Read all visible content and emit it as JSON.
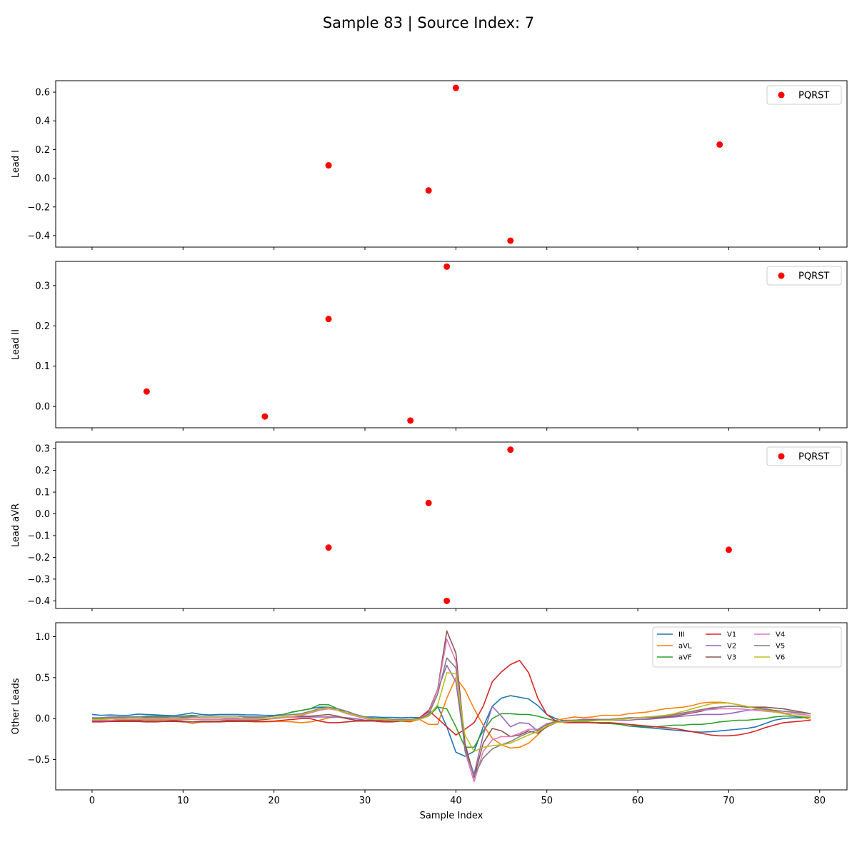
{
  "figure": {
    "title": "Sample 83 | Source Index: 7"
  },
  "chart_data": [
    {
      "type": "scatter",
      "ylabel": "Lead I",
      "xlim": [
        -4,
        83
      ],
      "ylim": [
        -0.48,
        0.68
      ],
      "yticks": [
        -0.4,
        -0.2,
        0.0,
        0.2,
        0.4,
        0.6
      ],
      "ytick_labels": [
        "−0.4",
        "−0.2",
        "0.0",
        "0.2",
        "0.4",
        "0.6"
      ],
      "xticks": [
        0,
        10,
        20,
        30,
        40,
        50,
        60,
        70,
        80
      ],
      "show_xtick_labels": false,
      "legend": {
        "placement": "upper-right",
        "entries": [
          {
            "label": "PQRST",
            "color": "#ff0000",
            "marker": "circle"
          }
        ]
      },
      "series": [
        {
          "name": "PQRST",
          "color": "#ff0000",
          "points": [
            [
              26,
              0.09
            ],
            [
              37,
              -0.085
            ],
            [
              40,
              0.63
            ],
            [
              46,
              -0.435
            ],
            [
              69,
              0.235
            ]
          ]
        }
      ]
    },
    {
      "type": "scatter",
      "ylabel": "Lead II",
      "xlim": [
        -4,
        83
      ],
      "ylim": [
        -0.053,
        0.36
      ],
      "yticks": [
        0.0,
        0.1,
        0.2,
        0.3
      ],
      "ytick_labels": [
        "0.0",
        "0.1",
        "0.2",
        "0.3"
      ],
      "xticks": [
        0,
        10,
        20,
        30,
        40,
        50,
        60,
        70,
        80
      ],
      "show_xtick_labels": false,
      "legend": {
        "placement": "upper-right",
        "entries": [
          {
            "label": "PQRST",
            "color": "#ff0000",
            "marker": "circle"
          }
        ]
      },
      "series": [
        {
          "name": "PQRST",
          "color": "#ff0000",
          "points": [
            [
              6,
              0.037
            ],
            [
              19,
              -0.025
            ],
            [
              26,
              0.217
            ],
            [
              35,
              -0.035
            ],
            [
              39,
              0.347
            ]
          ]
        }
      ]
    },
    {
      "type": "scatter",
      "ylabel": "Lead aVR",
      "xlim": [
        -4,
        83
      ],
      "ylim": [
        -0.435,
        0.33
      ],
      "yticks": [
        -0.4,
        -0.3,
        -0.2,
        -0.1,
        0.0,
        0.1,
        0.2,
        0.3
      ],
      "ytick_labels": [
        "−0.4",
        "−0.3",
        "−0.2",
        "−0.1",
        "0.0",
        "0.1",
        "0.2",
        "0.3"
      ],
      "xticks": [
        0,
        10,
        20,
        30,
        40,
        50,
        60,
        70,
        80
      ],
      "show_xtick_labels": false,
      "legend": {
        "placement": "upper-right",
        "entries": [
          {
            "label": "PQRST",
            "color": "#ff0000",
            "marker": "circle"
          }
        ]
      },
      "series": [
        {
          "name": "PQRST",
          "color": "#ff0000",
          "points": [
            [
              26,
              -0.155
            ],
            [
              37,
              0.05
            ],
            [
              39,
              -0.4
            ],
            [
              46,
              0.295
            ],
            [
              70,
              -0.165
            ]
          ]
        }
      ]
    },
    {
      "type": "line",
      "ylabel": "Other Leads",
      "xlabel": "Sample Index",
      "xlim": [
        -4,
        83
      ],
      "ylim": [
        -0.87,
        1.17
      ],
      "yticks": [
        -0.5,
        0.0,
        0.5,
        1.0
      ],
      "ytick_labels": [
        "−0.5",
        "0.0",
        "0.5",
        "1.0"
      ],
      "xticks": [
        0,
        10,
        20,
        30,
        40,
        50,
        60,
        70,
        80
      ],
      "xtick_labels": [
        "0",
        "10",
        "20",
        "30",
        "40",
        "50",
        "60",
        "70",
        "80"
      ],
      "show_xtick_labels": true,
      "legend": {
        "placement": "upper-right",
        "columns": 4
      },
      "x": [
        0,
        1,
        2,
        3,
        4,
        5,
        6,
        7,
        8,
        9,
        10,
        11,
        12,
        13,
        14,
        15,
        16,
        17,
        18,
        19,
        20,
        21,
        22,
        23,
        24,
        25,
        26,
        27,
        28,
        29,
        30,
        31,
        32,
        33,
        34,
        35,
        36,
        37,
        38,
        39,
        40,
        41,
        42,
        43,
        44,
        45,
        46,
        47,
        48,
        49,
        50,
        51,
        52,
        53,
        54,
        55,
        56,
        57,
        58,
        59,
        60,
        61,
        62,
        63,
        64,
        65,
        66,
        67,
        68,
        69,
        70,
        71,
        72,
        73,
        74,
        75,
        76,
        77,
        78,
        79
      ],
      "series": [
        {
          "name": "III",
          "color": "#1f77b4",
          "values": [
            0.05,
            0.04,
            0.045,
            0.04,
            0.04,
            0.055,
            0.05,
            0.045,
            0.04,
            0.035,
            0.05,
            0.07,
            0.05,
            0.045,
            0.05,
            0.05,
            0.05,
            0.045,
            0.045,
            0.04,
            0.04,
            0.05,
            0.08,
            0.1,
            0.12,
            0.14,
            0.14,
            0.1,
            0.07,
            0.05,
            0.02,
            0.02,
            0.015,
            0.015,
            0.01,
            0.015,
            0.01,
            0.05,
            0.15,
            -0.1,
            -0.41,
            -0.46,
            -0.4,
            -0.1,
            0.15,
            0.25,
            0.28,
            0.26,
            0.24,
            0.16,
            0.05,
            0.0,
            -0.03,
            -0.04,
            -0.045,
            -0.05,
            -0.055,
            -0.06,
            -0.07,
            -0.09,
            -0.1,
            -0.11,
            -0.12,
            -0.13,
            -0.14,
            -0.15,
            -0.16,
            -0.165,
            -0.16,
            -0.15,
            -0.14,
            -0.13,
            -0.12,
            -0.1,
            -0.06,
            -0.02,
            0.0,
            0.01,
            0.01,
            0.02
          ]
        },
        {
          "name": "aVL",
          "color": "#ff7f0e",
          "values": [
            -0.02,
            -0.02,
            -0.02,
            -0.025,
            -0.03,
            -0.035,
            -0.025,
            -0.025,
            -0.025,
            -0.02,
            -0.03,
            -0.06,
            -0.04,
            -0.04,
            -0.03,
            -0.03,
            -0.035,
            -0.035,
            -0.04,
            -0.04,
            -0.035,
            -0.035,
            -0.04,
            -0.05,
            -0.04,
            -0.02,
            0.01,
            0.02,
            0.0,
            -0.02,
            -0.03,
            -0.03,
            -0.025,
            -0.02,
            -0.03,
            -0.04,
            -0.01,
            -0.07,
            -0.07,
            0.25,
            0.5,
            0.35,
            0.12,
            -0.08,
            -0.24,
            -0.32,
            -0.36,
            -0.35,
            -0.3,
            -0.2,
            -0.08,
            -0.02,
            0.0,
            0.02,
            0.01,
            0.02,
            0.04,
            0.04,
            0.04,
            0.06,
            0.07,
            0.08,
            0.1,
            0.12,
            0.13,
            0.14,
            0.16,
            0.19,
            0.2,
            0.2,
            0.19,
            0.17,
            0.15,
            0.13,
            0.11,
            0.09,
            0.07,
            0.04,
            0.02,
            -0.01
          ]
        },
        {
          "name": "aVF",
          "color": "#2ca02c",
          "values": [
            0.0,
            0.0,
            0.01,
            0.02,
            0.02,
            0.02,
            0.03,
            0.03,
            0.03,
            0.02,
            0.03,
            0.04,
            0.03,
            0.03,
            0.03,
            0.03,
            0.03,
            0.02,
            0.02,
            0.02,
            0.03,
            0.05,
            0.08,
            0.1,
            0.12,
            0.17,
            0.17,
            0.12,
            0.07,
            0.04,
            0.02,
            0.0,
            -0.01,
            -0.01,
            -0.02,
            -0.02,
            0.0,
            0.03,
            0.14,
            0.12,
            -0.1,
            -0.35,
            -0.35,
            -0.15,
            0.0,
            0.06,
            0.06,
            0.05,
            0.05,
            0.03,
            0.0,
            -0.03,
            -0.04,
            -0.04,
            -0.04,
            -0.05,
            -0.06,
            -0.06,
            -0.07,
            -0.09,
            -0.09,
            -0.1,
            -0.1,
            -0.09,
            -0.08,
            -0.08,
            -0.07,
            -0.07,
            -0.06,
            -0.04,
            -0.03,
            -0.02,
            -0.02,
            -0.01,
            0.0,
            0.02,
            0.03,
            0.03,
            0.02,
            0.02
          ]
        },
        {
          "name": "V1",
          "color": "#d62728",
          "values": [
            -0.04,
            -0.04,
            -0.035,
            -0.035,
            -0.035,
            -0.035,
            -0.04,
            -0.04,
            -0.035,
            -0.035,
            -0.04,
            -0.04,
            -0.04,
            -0.04,
            -0.04,
            -0.035,
            -0.035,
            -0.035,
            -0.035,
            -0.035,
            -0.03,
            -0.02,
            -0.01,
            0.0,
            0.0,
            -0.03,
            -0.05,
            -0.05,
            -0.04,
            -0.03,
            -0.03,
            -0.03,
            -0.04,
            -0.04,
            -0.03,
            -0.03,
            0.01,
            0.1,
            0.0,
            -0.1,
            -0.2,
            -0.13,
            -0.05,
            0.15,
            0.45,
            0.57,
            0.66,
            0.71,
            0.56,
            0.25,
            0.05,
            -0.03,
            -0.05,
            -0.05,
            -0.05,
            -0.05,
            -0.05,
            -0.05,
            -0.06,
            -0.07,
            -0.08,
            -0.09,
            -0.1,
            -0.11,
            -0.12,
            -0.14,
            -0.16,
            -0.18,
            -0.2,
            -0.21,
            -0.21,
            -0.2,
            -0.18,
            -0.15,
            -0.11,
            -0.08,
            -0.05,
            -0.04,
            -0.03,
            -0.02
          ]
        },
        {
          "name": "V2",
          "color": "#9467bd",
          "values": [
            0.01,
            0.01,
            0.01,
            0.01,
            0.0,
            0.0,
            0.01,
            0.01,
            0.01,
            0.0,
            0.01,
            0.02,
            0.01,
            0.01,
            0.01,
            0.0,
            0.0,
            0.01,
            0.01,
            0.0,
            0.01,
            0.02,
            0.02,
            0.02,
            0.02,
            0.02,
            0.02,
            0.02,
            0.01,
            0.0,
            -0.02,
            -0.02,
            -0.02,
            -0.02,
            -0.02,
            -0.02,
            0.0,
            0.08,
            0.35,
            0.65,
            0.45,
            -0.35,
            -0.68,
            -0.2,
            0.15,
            0.03,
            -0.1,
            -0.05,
            -0.06,
            -0.15,
            -0.1,
            -0.05,
            -0.02,
            -0.02,
            -0.01,
            -0.01,
            -0.02,
            -0.02,
            -0.02,
            -0.02,
            -0.01,
            -0.01,
            0.0,
            0.01,
            0.02,
            0.03,
            0.04,
            0.05,
            0.05,
            0.05,
            0.06,
            0.08,
            0.1,
            0.11,
            0.11,
            0.1,
            0.09,
            0.08,
            0.07,
            0.06
          ]
        },
        {
          "name": "V3",
          "color": "#8c564b",
          "values": [
            -0.03,
            -0.03,
            -0.02,
            -0.02,
            -0.02,
            -0.02,
            -0.03,
            -0.03,
            -0.03,
            -0.02,
            -0.03,
            -0.04,
            -0.03,
            -0.03,
            -0.03,
            -0.02,
            -0.02,
            -0.02,
            -0.02,
            -0.01,
            0.0,
            0.01,
            0.02,
            0.03,
            0.03,
            0.04,
            0.05,
            0.03,
            0.0,
            -0.02,
            -0.02,
            -0.02,
            -0.02,
            -0.03,
            -0.03,
            -0.02,
            -0.01,
            0.09,
            0.36,
            1.07,
            0.8,
            -0.3,
            -0.72,
            -0.3,
            -0.12,
            -0.15,
            -0.22,
            -0.2,
            -0.15,
            -0.18,
            -0.1,
            -0.05,
            -0.03,
            -0.02,
            -0.02,
            -0.01,
            -0.01,
            -0.01,
            0.0,
            0.0,
            0.01,
            0.01,
            0.01,
            0.02,
            0.03,
            0.05,
            0.07,
            0.09,
            0.12,
            0.14,
            0.15,
            0.15,
            0.14,
            0.14,
            0.14,
            0.13,
            0.12,
            0.1,
            0.08,
            0.06
          ]
        },
        {
          "name": "V4",
          "color": "#e377c2",
          "values": [
            -0.02,
            -0.02,
            -0.02,
            -0.01,
            -0.01,
            -0.01,
            -0.01,
            -0.01,
            -0.01,
            -0.01,
            -0.01,
            -0.01,
            -0.01,
            -0.01,
            -0.01,
            -0.01,
            -0.01,
            -0.01,
            -0.01,
            0.0,
            0.0,
            0.01,
            0.02,
            0.04,
            0.07,
            0.1,
            0.12,
            0.1,
            0.06,
            0.03,
            0.0,
            -0.01,
            -0.01,
            -0.02,
            -0.02,
            -0.02,
            0.0,
            0.07,
            0.35,
            0.97,
            0.7,
            -0.4,
            -0.77,
            -0.4,
            -0.26,
            -0.22,
            -0.22,
            -0.18,
            -0.13,
            -0.13,
            -0.06,
            -0.04,
            -0.03,
            -0.02,
            -0.02,
            -0.02,
            -0.01,
            -0.01,
            0.0,
            0.01,
            0.01,
            0.02,
            0.02,
            0.03,
            0.04,
            0.06,
            0.08,
            0.1,
            0.11,
            0.12,
            0.12,
            0.12,
            0.11,
            0.1,
            0.09,
            0.08,
            0.07,
            0.06,
            0.05,
            0.04
          ]
        },
        {
          "name": "V5",
          "color": "#7f7f7f",
          "values": [
            0.0,
            0.01,
            0.02,
            0.02,
            0.02,
            0.02,
            0.02,
            0.02,
            0.02,
            0.02,
            0.02,
            0.03,
            0.03,
            0.03,
            0.03,
            0.03,
            0.03,
            0.02,
            0.02,
            0.02,
            0.03,
            0.04,
            0.05,
            0.06,
            0.09,
            0.12,
            0.14,
            0.12,
            0.09,
            0.05,
            0.02,
            0.0,
            0.0,
            -0.01,
            -0.01,
            -0.01,
            0.0,
            0.05,
            0.3,
            0.74,
            0.62,
            -0.38,
            -0.7,
            -0.48,
            -0.37,
            -0.32,
            -0.28,
            -0.22,
            -0.17,
            -0.14,
            -0.07,
            -0.04,
            -0.03,
            -0.02,
            -0.02,
            -0.02,
            -0.01,
            -0.01,
            0.0,
            0.01,
            0.01,
            0.02,
            0.02,
            0.03,
            0.05,
            0.07,
            0.09,
            0.11,
            0.13,
            0.14,
            0.15,
            0.15,
            0.14,
            0.13,
            0.12,
            0.1,
            0.09,
            0.08,
            0.07,
            0.06
          ]
        },
        {
          "name": "V6",
          "color": "#bcbd22",
          "values": [
            -0.01,
            -0.01,
            0.0,
            0.0,
            0.0,
            0.0,
            0.0,
            0.0,
            0.0,
            0.0,
            0.0,
            0.01,
            0.01,
            0.01,
            0.01,
            0.01,
            0.01,
            0.0,
            0.0,
            0.0,
            0.01,
            0.02,
            0.03,
            0.05,
            0.08,
            0.11,
            0.13,
            0.1,
            0.07,
            0.04,
            0.01,
            -0.01,
            -0.01,
            -0.02,
            -0.02,
            -0.02,
            -0.01,
            0.03,
            0.17,
            0.56,
            0.55,
            -0.2,
            -0.4,
            -0.35,
            -0.33,
            -0.32,
            -0.3,
            -0.25,
            -0.2,
            -0.16,
            -0.09,
            -0.05,
            -0.04,
            -0.03,
            -0.03,
            -0.03,
            -0.02,
            -0.02,
            -0.01,
            0.0,
            0.01,
            0.02,
            0.03,
            0.04,
            0.06,
            0.09,
            0.12,
            0.15,
            0.18,
            0.19,
            0.19,
            0.17,
            0.15,
            0.12,
            0.1,
            0.08,
            0.06,
            0.04,
            0.03,
            0.02
          ]
        }
      ]
    }
  ]
}
